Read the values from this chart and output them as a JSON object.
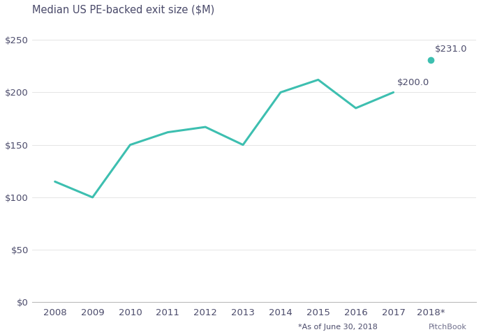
{
  "title": "Median US PE-backed exit size ($M)",
  "years": [
    2008,
    2009,
    2010,
    2011,
    2012,
    2013,
    2014,
    2015,
    2016,
    2017,
    2018
  ],
  "values": [
    115,
    100,
    150,
    162,
    167,
    150,
    200,
    212,
    185,
    200,
    231
  ],
  "line_color": "#3dbfb0",
  "marker_color": "#3dbfb0",
  "background_color": "#ffffff",
  "title_color": "#4a4a6a",
  "tick_label_color": "#4a4a6a",
  "annotation_color": "#4a4a6a",
  "ylim": [
    0,
    268
  ],
  "yticks": [
    0,
    50,
    100,
    150,
    200,
    250
  ],
  "ytick_labels": [
    "$0",
    "$50",
    "$100",
    "$150",
    "$200",
    "$250"
  ],
  "xlim": [
    2007.4,
    2019.2
  ],
  "last_label": "$231.0",
  "second_last_label": "$200.0",
  "footnote": "*As of June 30, 2018",
  "watermark": "PitchBook",
  "line_width": 2.2,
  "marker_size": 7,
  "title_fontsize": 10.5,
  "tick_fontsize": 9.5,
  "annotation_fontsize": 9.5,
  "footnote_fontsize": 8,
  "grid_color": "#e0e0e0"
}
